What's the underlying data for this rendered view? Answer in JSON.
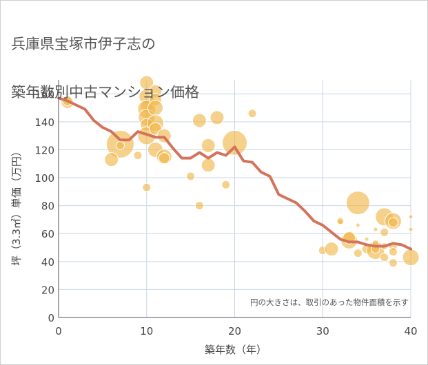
{
  "title_lines": [
    "兵庫県宝塚市伊子志の",
    "築年数別中古マンション価格"
  ],
  "colors": {
    "line": "#d4735c",
    "bubble": "#f0b545",
    "bubble_stroke": "#ffffff",
    "grid": "#c8d6e3",
    "axis": "#555555"
  },
  "chart_data": {
    "type": "scatter",
    "title": "兵庫県宝塚市伊子志の築年数別中古マンション価格",
    "xlabel": "築年数（年）",
    "ylabel": "坪（3.3㎡）単価（万円）",
    "xlim": [
      0,
      40
    ],
    "ylim": [
      0,
      170
    ],
    "xticks": [
      0,
      10,
      20,
      30,
      40
    ],
    "yticks": [
      0,
      20,
      40,
      60,
      80,
      100,
      120,
      140,
      160
    ],
    "grid": true,
    "note": "円の大きさは、取引のあった物件面積を示す",
    "series": [
      {
        "type": "line",
        "points": [
          [
            0,
            157
          ],
          [
            1,
            155
          ],
          [
            2,
            152
          ],
          [
            3,
            149
          ],
          [
            4,
            141
          ],
          [
            5,
            136
          ],
          [
            6,
            133
          ],
          [
            7,
            127
          ],
          [
            8,
            127
          ],
          [
            9,
            133
          ],
          [
            10,
            131
          ],
          [
            11,
            129
          ],
          [
            12,
            129
          ],
          [
            13,
            121
          ],
          [
            14,
            114
          ],
          [
            15,
            114
          ],
          [
            16,
            118
          ],
          [
            17,
            114
          ],
          [
            18,
            118
          ],
          [
            19,
            116
          ],
          [
            20,
            122
          ],
          [
            21,
            112
          ],
          [
            22,
            111
          ],
          [
            23,
            104
          ],
          [
            24,
            101
          ],
          [
            25,
            88
          ],
          [
            26,
            85
          ],
          [
            27,
            82
          ],
          [
            28,
            76
          ],
          [
            29,
            69
          ],
          [
            30,
            66
          ],
          [
            31,
            61
          ],
          [
            32,
            56
          ],
          [
            33,
            54
          ],
          [
            34,
            54
          ],
          [
            35,
            52
          ],
          [
            36,
            51
          ],
          [
            37,
            51
          ],
          [
            38,
            53
          ],
          [
            39,
            52
          ],
          [
            40,
            49
          ]
        ]
      },
      {
        "type": "bubble",
        "points": [
          [
            1,
            154,
            9
          ],
          [
            1,
            155,
            7
          ],
          [
            7,
            124,
            20
          ],
          [
            7,
            123,
            6
          ],
          [
            6,
            113,
            10
          ],
          [
            9,
            116,
            6
          ],
          [
            10,
            168,
            10
          ],
          [
            10,
            158,
            11
          ],
          [
            10,
            151,
            9
          ],
          [
            10,
            149,
            13
          ],
          [
            10,
            143,
            12
          ],
          [
            10,
            138,
            9
          ],
          [
            10,
            130,
            13
          ],
          [
            10,
            93,
            6
          ],
          [
            11,
            162,
            9
          ],
          [
            11,
            156,
            9
          ],
          [
            11,
            150,
            11
          ],
          [
            11,
            139,
            12
          ],
          [
            11,
            135,
            9
          ],
          [
            11,
            120,
            11
          ],
          [
            12,
            130,
            10
          ],
          [
            12,
            115,
            11
          ],
          [
            12,
            114,
            8
          ],
          [
            15,
            101,
            6
          ],
          [
            16,
            141,
            10
          ],
          [
            16,
            80,
            6
          ],
          [
            17,
            123,
            10
          ],
          [
            17,
            109,
            10
          ],
          [
            18,
            143,
            10
          ],
          [
            19,
            95,
            6
          ],
          [
            20,
            125,
            18
          ],
          [
            22,
            146,
            6
          ],
          [
            30,
            48,
            6
          ],
          [
            31,
            49,
            10
          ],
          [
            32,
            68,
            4
          ],
          [
            32,
            69,
            5
          ],
          [
            33,
            55,
            12
          ],
          [
            33,
            57,
            9
          ],
          [
            34,
            82,
            17
          ],
          [
            34,
            66,
            3
          ],
          [
            34,
            46,
            6
          ],
          [
            35,
            56,
            3
          ],
          [
            35,
            49,
            7
          ],
          [
            36,
            48,
            13
          ],
          [
            36,
            49,
            6
          ],
          [
            36,
            63,
            3
          ],
          [
            36,
            53,
            5
          ],
          [
            37,
            72,
            13
          ],
          [
            37,
            61,
            6
          ],
          [
            37,
            43,
            6
          ],
          [
            37,
            51,
            5
          ],
          [
            38,
            69,
            12
          ],
          [
            38,
            68,
            7
          ],
          [
            38,
            51,
            6
          ],
          [
            38,
            47,
            6
          ],
          [
            38,
            39,
            6
          ],
          [
            40,
            43,
            12
          ],
          [
            40,
            63,
            3
          ],
          [
            40,
            72,
            3
          ]
        ]
      }
    ]
  }
}
